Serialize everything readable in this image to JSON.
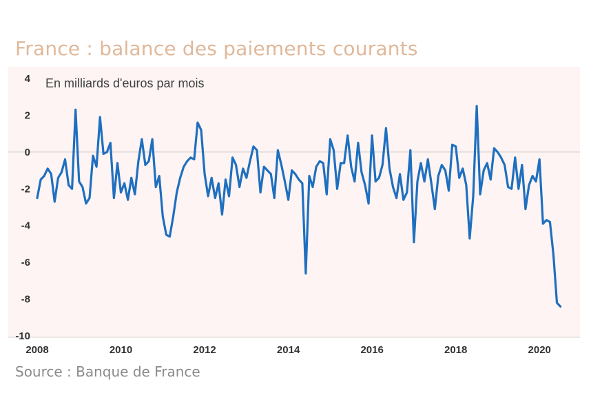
{
  "title": "France : balance des paiements courants",
  "source": "Source : Banque de France",
  "colors": {
    "line": "#1f6fbf",
    "plot_bg": "#fdf4f3",
    "zero_line": "#cccccc",
    "title": "#e0b89a"
  },
  "chart_data": {
    "type": "line",
    "unit_label": "En milliards d'euros par mois",
    "xlabel": "",
    "ylabel": "",
    "xlim": [
      2008,
      2021
    ],
    "ylim": [
      -10,
      4
    ],
    "y_ticks": [
      4,
      2,
      0,
      -2,
      -4,
      -6,
      -8,
      -10
    ],
    "y_tick_labels": [
      "4",
      "2",
      "0",
      "-2",
      "-4",
      "-6",
      "-8",
      "-10"
    ],
    "x_ticks": [
      2008,
      2010,
      2012,
      2014,
      2016,
      2018,
      2020
    ],
    "x_tick_labels": [
      "2008",
      "2010",
      "2012",
      "2014",
      "2016",
      "2018",
      "2020"
    ],
    "grid": false,
    "series": [
      {
        "start": 2008.0,
        "step": 0.08333,
        "values": [
          -2.5,
          -1.5,
          -1.3,
          -0.9,
          -1.2,
          -2.7,
          -1.4,
          -1.1,
          -0.4,
          -1.8,
          -2.0,
          2.3,
          -1.6,
          -1.9,
          -2.8,
          -2.5,
          -0.2,
          -0.8,
          1.9,
          -0.1,
          0.0,
          0.5,
          -2.5,
          -0.6,
          -2.2,
          -1.7,
          -2.6,
          -1.4,
          -2.3,
          -0.5,
          0.7,
          -0.7,
          -0.5,
          0.7,
          -1.9,
          -1.3,
          -3.5,
          -4.5,
          -4.6,
          -3.5,
          -2.2,
          -1.4,
          -0.8,
          -0.5,
          -0.3,
          -0.4,
          1.6,
          1.2,
          -1.2,
          -2.4,
          -1.4,
          -2.5,
          -1.7,
          -3.4,
          -1.5,
          -2.4,
          -0.3,
          -0.7,
          -1.9,
          -0.9,
          -1.4,
          -0.5,
          0.3,
          0.1,
          -2.2,
          -0.8,
          -1.0,
          -1.2,
          -2.5,
          0.1,
          -0.7,
          -1.6,
          -2.6,
          -1.0,
          -1.2,
          -1.5,
          -1.7,
          -6.6,
          -1.3,
          -1.9,
          -0.8,
          -0.5,
          -0.6,
          -2.3,
          0.7,
          0.1,
          -2.0,
          -0.6,
          -0.6,
          0.9,
          -0.8,
          -1.6,
          0.5,
          -1.1,
          -1.8,
          -2.8,
          0.9,
          -1.6,
          -1.4,
          -0.7,
          1.3,
          -0.9,
          -1.9,
          -2.5,
          -1.2,
          -2.6,
          -2.2,
          0.1,
          -4.9,
          -1.6,
          -0.6,
          -1.6,
          -0.4,
          -1.7,
          -3.1,
          -1.3,
          -0.7,
          -1.0,
          -2.1,
          0.4,
          0.3,
          -1.4,
          -0.9,
          -1.8,
          -4.7,
          -2.4,
          2.5,
          -2.3,
          -1.0,
          -0.6,
          -1.5,
          0.2,
          0.0,
          -0.3,
          -0.7,
          -1.9,
          -2.0,
          -0.3,
          -2.0,
          -0.7,
          -3.1,
          -1.8,
          -1.3,
          -1.6,
          -0.4,
          -3.9,
          -3.7,
          -3.8,
          -5.6,
          -8.2,
          -8.4
        ]
      }
    ]
  }
}
